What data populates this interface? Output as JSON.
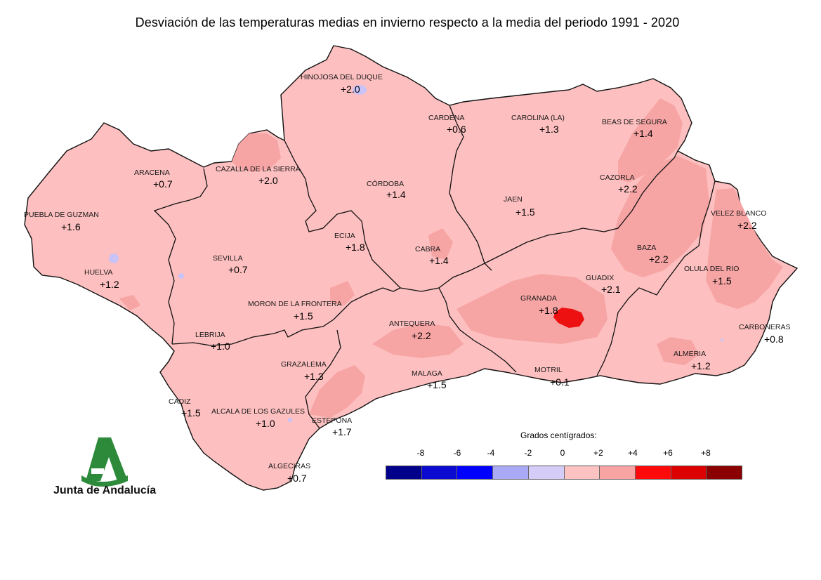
{
  "title": "Desviación de las temperaturas medias en invierno respecto a la media del periodo 1991 - 2020",
  "colors": {
    "land": "#fdbfbf",
    "warm": "#f7a4a4",
    "hot": "#ee1111",
    "border": "#111111",
    "cool": "#c9c3f7"
  },
  "stations": [
    {
      "name": "HINOJOSA DEL DUQUE",
      "value": "+2.0"
    },
    {
      "name": "CARDENA",
      "value": "+0.6"
    },
    {
      "name": "CAROLINA (LA)",
      "value": "+1.3"
    },
    {
      "name": "BEAS DE SEGURA",
      "value": "+1.4"
    },
    {
      "name": "ARACENA",
      "value": "+0.7"
    },
    {
      "name": "CAZALLA DE LA SIERRA",
      "value": "+2.0"
    },
    {
      "name": "CÓRDOBA",
      "value": "+1.4"
    },
    {
      "name": "CAZORLA",
      "value": "+2.2"
    },
    {
      "name": "PUEBLA DE GUZMAN",
      "value": "+1.6"
    },
    {
      "name": "JAEN",
      "value": "+1.5"
    },
    {
      "name": "VELEZ BLANCO",
      "value": "+2.2"
    },
    {
      "name": "ECIJA",
      "value": "+1.8"
    },
    {
      "name": "SEVILLA",
      "value": "+0.7"
    },
    {
      "name": "CABRA",
      "value": "+1.4"
    },
    {
      "name": "BAZA",
      "value": "+2.2"
    },
    {
      "name": "HUELVA",
      "value": "+1.2"
    },
    {
      "name": "OLULA DEL RIO",
      "value": "+1.5"
    },
    {
      "name": "GUADIX",
      "value": "+2.1"
    },
    {
      "name": "MORON DE LA FRONTERA",
      "value": "+1.5"
    },
    {
      "name": "GRANADA",
      "value": "+1.8"
    },
    {
      "name": "ANTEQUERA",
      "value": "+2.2"
    },
    {
      "name": "CARBONERAS",
      "value": "+0.8"
    },
    {
      "name": "LEBRIJA",
      "value": "+1.0"
    },
    {
      "name": "GRAZALEMA",
      "value": "+1.3"
    },
    {
      "name": "ALMERIA",
      "value": "+1.2"
    },
    {
      "name": "MALAGA",
      "value": "+1.5"
    },
    {
      "name": "MOTRIL",
      "value": "+0.1"
    },
    {
      "name": "CADIZ",
      "value": "+1.5"
    },
    {
      "name": "ALCALA DE LOS GAZULES",
      "value": "+1.0"
    },
    {
      "name": "ESTEPONA",
      "value": "+1.7"
    },
    {
      "name": "ALGECIRAS",
      "value": "+0.7"
    }
  ],
  "legend": {
    "title": "Grados centígrados:",
    "ticks": [
      "-8",
      "-6",
      "-4",
      "-2",
      "0",
      "+2",
      "+4",
      "+6",
      "+8"
    ],
    "swatches": [
      "#00008b",
      "#0a0ad0",
      "#0000ff",
      "#a9a9f5",
      "#d5cdf7",
      "#fdc2c2",
      "#f9a3a3",
      "#ff0a0a",
      "#dd0000",
      "#8b0000"
    ]
  },
  "logo": {
    "text": "Junta de Andalucía",
    "color": "#2e8a3b",
    "icon": "junta-andalucia-logo-icon"
  }
}
